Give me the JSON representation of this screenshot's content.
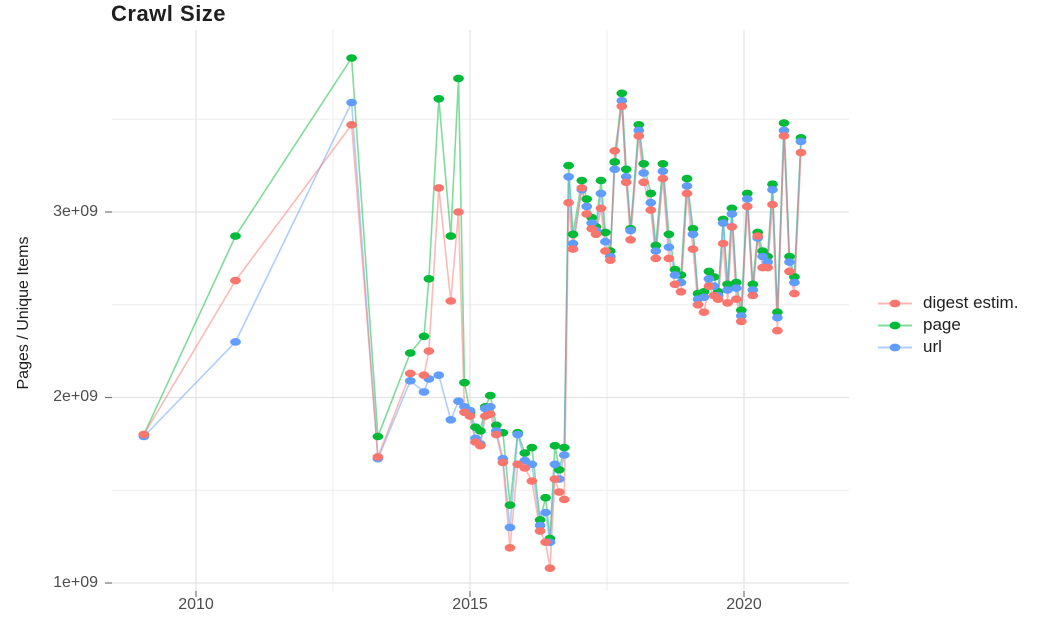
{
  "title": "Crawl Size",
  "y_axis": {
    "label": "Pages / Unique Items",
    "ticks": [
      "1e+09",
      "2e+09",
      "3e+09"
    ],
    "tick_values": [
      1,
      2,
      3
    ],
    "minor_tick_values": [
      1.5,
      2.5,
      3.5
    ]
  },
  "x_axis": {
    "ticks": [
      "2010",
      "2015",
      "2020"
    ],
    "tick_values": [
      2010,
      2015,
      2020
    ],
    "minor_tick_values": [
      2012.5,
      2017.5
    ]
  },
  "legend": {
    "position": "right",
    "items": [
      {
        "label": "digest estim.",
        "color": "#F8766D"
      },
      {
        "label": "page",
        "color": "#00BA38"
      },
      {
        "label": "url",
        "color": "#619CFF"
      }
    ]
  },
  "colors": {
    "digest": "#F8766D",
    "page": "#00BA38",
    "url": "#619CFF",
    "grid_major": "#e3e3e3",
    "grid_minor": "#eeeeee",
    "tick_mark": "#767676",
    "tick_text": "#4d4d4d",
    "title_text": "#1f1f1f"
  },
  "chart_data": {
    "type": "line",
    "title": "Crawl Size",
    "xlabel": "",
    "ylabel": "Pages / Unique Items",
    "x_unit": "year (decimal)",
    "y_unit": "items (multiples of 1e+09)",
    "xlim": [
      2008.5,
      2021.9
    ],
    "ylim": [
      1.0,
      4.0
    ],
    "grid": true,
    "legend_position": "right",
    "marker": "ellipse",
    "x": [
      2009.05,
      2010.72,
      2012.84,
      2013.32,
      2013.91,
      2014.16,
      2014.25,
      2014.43,
      2014.65,
      2014.79,
      2014.9,
      2015.0,
      2015.1,
      2015.19,
      2015.28,
      2015.37,
      2015.48,
      2015.6,
      2015.73,
      2015.87,
      2016.0,
      2016.13,
      2016.28,
      2016.38,
      2016.46,
      2016.55,
      2016.63,
      2016.72,
      2016.8,
      2016.88,
      2017.04,
      2017.13,
      2017.22,
      2017.3,
      2017.39,
      2017.47,
      2017.56,
      2017.64,
      2017.77,
      2017.85,
      2017.93,
      2018.08,
      2018.17,
      2018.3,
      2018.39,
      2018.52,
      2018.63,
      2018.74,
      2018.85,
      2018.96,
      2019.07,
      2019.16,
      2019.27,
      2019.36,
      2019.45,
      2019.53,
      2019.62,
      2019.7,
      2019.78,
      2019.86,
      2019.95,
      2020.06,
      2020.16,
      2020.25,
      2020.34,
      2020.43,
      2020.52,
      2020.61,
      2020.73,
      2020.83,
      2020.92,
      2021.04
    ],
    "series": [
      {
        "name": "digest estim.",
        "color": "#F8766D",
        "values": [
          1.8,
          2.63,
          3.47,
          1.68,
          2.13,
          2.12,
          2.25,
          3.13,
          2.52,
          3.0,
          1.92,
          1.9,
          1.76,
          1.74,
          1.9,
          1.91,
          1.8,
          1.65,
          1.19,
          1.64,
          1.62,
          1.55,
          1.28,
          1.22,
          1.08,
          1.56,
          1.49,
          1.45,
          3.05,
          2.8,
          3.13,
          2.99,
          2.91,
          2.88,
          3.02,
          2.79,
          2.74,
          3.33,
          3.57,
          3.16,
          2.85,
          3.41,
          3.16,
          3.01,
          2.75,
          3.18,
          2.75,
          2.61,
          2.57,
          3.1,
          2.8,
          2.5,
          2.46,
          2.6,
          2.55,
          2.53,
          2.83,
          2.51,
          2.92,
          2.53,
          2.41,
          3.03,
          2.55,
          2.87,
          2.7,
          2.7,
          3.04,
          2.36,
          3.41,
          2.68,
          2.56,
          3.32
        ]
      },
      {
        "name": "page",
        "color": "#00BA38",
        "values": [
          1.8,
          2.87,
          3.83,
          1.79,
          2.24,
          2.33,
          2.64,
          3.61,
          2.87,
          3.72,
          2.08,
          1.92,
          1.84,
          1.82,
          1.95,
          2.01,
          1.85,
          1.81,
          1.42,
          1.81,
          1.7,
          1.73,
          1.34,
          1.46,
          1.24,
          1.74,
          1.61,
          1.73,
          3.25,
          2.88,
          3.17,
          3.07,
          2.97,
          2.92,
          3.17,
          2.89,
          2.79,
          3.27,
          3.64,
          3.23,
          2.91,
          3.47,
          3.26,
          3.1,
          2.82,
          3.26,
          2.88,
          2.69,
          2.66,
          3.18,
          2.91,
          2.56,
          2.57,
          2.68,
          2.65,
          2.57,
          2.96,
          2.61,
          3.02,
          2.62,
          2.47,
          3.1,
          2.61,
          2.89,
          2.79,
          2.76,
          3.15,
          2.46,
          3.48,
          2.76,
          2.65,
          3.4
        ]
      },
      {
        "name": "url",
        "color": "#619CFF",
        "values": [
          1.79,
          2.3,
          3.59,
          1.67,
          2.09,
          2.03,
          2.1,
          2.12,
          1.88,
          1.98,
          1.95,
          1.93,
          1.78,
          1.75,
          1.94,
          1.95,
          1.82,
          1.67,
          1.3,
          1.8,
          1.66,
          1.64,
          1.31,
          1.38,
          1.22,
          1.64,
          1.56,
          1.69,
          3.19,
          2.83,
          3.12,
          3.03,
          2.94,
          2.9,
          3.1,
          2.84,
          2.76,
          3.23,
          3.6,
          3.19,
          2.9,
          3.44,
          3.21,
          3.05,
          2.79,
          3.22,
          2.81,
          2.66,
          2.62,
          3.14,
          2.88,
          2.53,
          2.54,
          2.64,
          2.6,
          2.55,
          2.94,
          2.58,
          2.99,
          2.59,
          2.44,
          3.07,
          2.58,
          2.86,
          2.76,
          2.73,
          3.12,
          2.43,
          3.44,
          2.73,
          2.62,
          3.38
        ]
      }
    ]
  }
}
